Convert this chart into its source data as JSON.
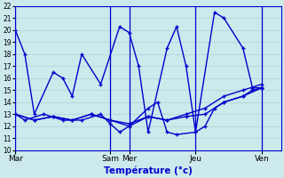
{
  "xlabel": "Température (°c)",
  "ylim": [
    10,
    22
  ],
  "yticks": [
    10,
    11,
    12,
    13,
    14,
    15,
    16,
    17,
    18,
    19,
    20,
    21,
    22
  ],
  "background_color": "#cce9ec",
  "grid_color": "#a8d4d8",
  "line_color": "#0000cc",
  "day_labels": [
    "Mar",
    "Sam",
    "Mer",
    "Jeu",
    "Ven"
  ],
  "day_x": [
    0,
    10,
    12,
    19,
    26
  ],
  "vline_x": [
    0,
    10,
    12,
    19,
    26
  ],
  "xlim": [
    0,
    28
  ],
  "lines": [
    {
      "x": [
        0,
        1,
        2,
        4,
        5,
        6,
        7,
        9,
        11,
        12,
        13,
        14,
        16,
        17,
        18,
        19,
        21,
        22,
        24,
        25,
        26
      ],
      "y": [
        20,
        18,
        13,
        16.5,
        16,
        14.5,
        18,
        15.5,
        20.3,
        19.8,
        17,
        11.5,
        18.5,
        20.3,
        17,
        11.5,
        21.5,
        21,
        18.5,
        15.2,
        15.2
      ]
    },
    {
      "x": [
        0,
        1,
        3,
        5,
        7,
        9,
        10,
        11,
        12,
        14,
        15,
        16,
        17,
        19,
        20,
        21,
        22,
        24,
        25,
        26
      ],
      "y": [
        13,
        12.5,
        13,
        12.5,
        12.5,
        13,
        12.2,
        11.5,
        12.0,
        13.5,
        14,
        11.5,
        11.3,
        11.5,
        12.0,
        13.5,
        14.0,
        14.5,
        15.0,
        15.2
      ]
    },
    {
      "x": [
        0,
        2,
        4,
        6,
        8,
        10,
        12,
        14,
        16,
        18,
        20,
        22,
        24,
        26
      ],
      "y": [
        13,
        12.5,
        12.8,
        12.5,
        13,
        12.5,
        12.2,
        12.8,
        12.5,
        12.8,
        13,
        14.0,
        14.5,
        15.2
      ]
    },
    {
      "x": [
        0,
        2,
        4,
        6,
        8,
        10,
        12,
        14,
        16,
        18,
        20,
        22,
        24,
        26
      ],
      "y": [
        13,
        12.5,
        12.8,
        12.5,
        13,
        12.5,
        12.0,
        12.8,
        12.5,
        13.0,
        13.5,
        14.5,
        15.0,
        15.5
      ]
    }
  ],
  "marker": "+",
  "markersize": 3.5,
  "linewidth": 1.0,
  "dpi": 100,
  "figsize": [
    3.2,
    2.0
  ]
}
